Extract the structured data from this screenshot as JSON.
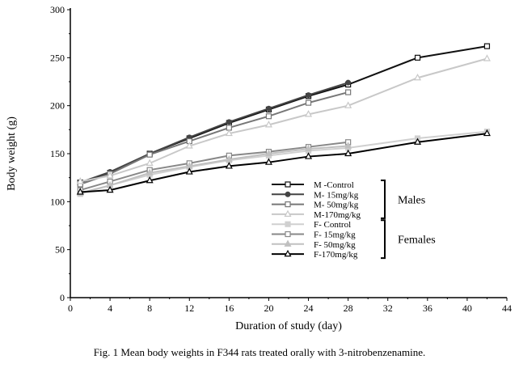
{
  "chart_data": {
    "type": "line",
    "caption": "Fig. 1  Mean body weights  in F344 rats treated orally with 3-nitrobenzenamine.",
    "xlabel": "Duration of study  (day)",
    "ylabel": "Body weight (g)",
    "xlim": [
      0,
      44
    ],
    "ylim": [
      0,
      300
    ],
    "xticks": [
      0,
      4,
      8,
      12,
      16,
      20,
      24,
      28,
      32,
      36,
      40,
      44
    ],
    "yticks": [
      0,
      50,
      100,
      150,
      200,
      250,
      300
    ],
    "grid": false,
    "legend_position": "center-right",
    "groups": [
      {
        "label": "Males",
        "series": [
          0,
          1,
          2,
          3
        ]
      },
      {
        "label": "Females",
        "series": [
          4,
          5,
          6,
          7
        ]
      }
    ],
    "series": [
      {
        "name": "M -Control",
        "color": "#111111",
        "marker": "open-square",
        "x": [
          1,
          4,
          8,
          12,
          16,
          20,
          24,
          28,
          35,
          42
        ],
        "y": [
          120,
          130,
          150,
          166,
          182,
          196,
          210,
          222,
          250,
          262
        ]
      },
      {
        "name": "M- 15mg/kg",
        "color": "#444444",
        "marker": "filled-circle",
        "x": [
          1,
          4,
          8,
          12,
          16,
          20,
          24,
          28
        ],
        "y": [
          120,
          131,
          150,
          167,
          183,
          197,
          211,
          224
        ]
      },
      {
        "name": "M- 50mg/kg",
        "color": "#777777",
        "marker": "open-square",
        "x": [
          1,
          4,
          8,
          12,
          16,
          20,
          24,
          28
        ],
        "y": [
          118,
          129,
          149,
          163,
          177,
          189,
          203,
          214
        ]
      },
      {
        "name": "M-170mg/kg",
        "color": "#c8c8c8",
        "marker": "open-triangle",
        "x": [
          1,
          4,
          8,
          12,
          16,
          20,
          24,
          28,
          35,
          42
        ],
        "y": [
          121,
          127,
          140,
          158,
          171,
          180,
          191,
          200,
          229,
          249
        ]
      },
      {
        "name": "F- Control",
        "color": "#d0d0d0",
        "marker": "filled-square",
        "x": [
          1,
          4,
          8,
          12,
          16,
          20,
          24,
          28,
          35,
          42
        ],
        "y": [
          108,
          117,
          128,
          136,
          143,
          148,
          153,
          156,
          166,
          173
        ]
      },
      {
        "name": "F- 15mg/kg",
        "color": "#888888",
        "marker": "open-square",
        "x": [
          1,
          4,
          8,
          12,
          16,
          20,
          24,
          28
        ],
        "y": [
          112,
          121,
          133,
          140,
          148,
          152,
          157,
          162
        ]
      },
      {
        "name": "F- 50mg/kg",
        "color": "#c0c0c0",
        "marker": "filled-triangle",
        "x": [
          1,
          4,
          8,
          12,
          16,
          20,
          24,
          28
        ],
        "y": [
          109,
          117,
          130,
          137,
          144,
          150,
          155,
          158
        ]
      },
      {
        "name": "F-170mg/kg",
        "color": "#000000",
        "marker": "open-triangle",
        "x": [
          1,
          4,
          8,
          12,
          16,
          20,
          24,
          28,
          35,
          42
        ],
        "y": [
          110,
          112,
          122,
          131,
          137,
          141,
          147,
          150,
          162,
          171
        ]
      }
    ]
  }
}
